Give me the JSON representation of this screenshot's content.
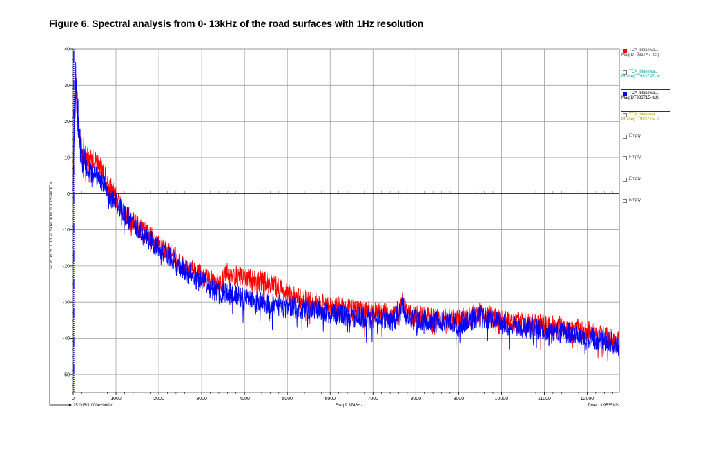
{
  "figure_title": "Figure 6. Spectral analysis from 0- 13kHz of the road surfaces with 1Hz resolution",
  "colors": {
    "series_red": "#ff0000",
    "series_blue": "#0000ff",
    "grid": "#a0a0a0",
    "zero_line": "#000000"
  },
  "legend": [
    {
      "line1": "TCA_blakewa...",
      "line2": "Mag(DT9837A7- tct)",
      "color": "#ff0000",
      "text_color": "#444444",
      "filled": true,
      "selected": false
    },
    {
      "line1": "TCA_blakewa...",
      "line2": "Phase(DT9837A7- tc",
      "color": "#00b0b0",
      "text_color": "#00a0a0",
      "filled": false,
      "selected": false
    },
    {
      "line1": "TCA_blakewa...",
      "line2": "Mag(DT983715- tct)",
      "color": "#0000ff",
      "text_color": "#000000",
      "filled": true,
      "selected": true
    },
    {
      "line1": "TCA_blakewa...",
      "line2": "Phase(DT983715- tc",
      "color": "#b0b000",
      "text_color": "#a0a000",
      "filled": false,
      "selected": false
    },
    {
      "line1": "Empty",
      "line2": "",
      "color": "#888888",
      "text_color": "#444444",
      "filled": false,
      "selected": false
    },
    {
      "line1": "Empty",
      "line2": "",
      "color": "#888888",
      "text_color": "#444444",
      "filled": false,
      "selected": false
    },
    {
      "line1": "Empty",
      "line2": "",
      "color": "#888888",
      "text_color": "#444444",
      "filled": false,
      "selected": false
    },
    {
      "line1": "Empty",
      "line2": "",
      "color": "#888888",
      "text_color": "#444444",
      "filled": false,
      "selected": false
    }
  ],
  "y_axis_vertical_label": "Mag(DT983715- tct)",
  "bottom_left_note": "25.0dB/1.000e+000V",
  "bottom_center_note": "Freq 9.3746Hz",
  "bottom_right_note": "Time 13.953592s",
  "chart_data": {
    "type": "line",
    "xlabel": "",
    "ylabel": "Mag(DT983715- tct)",
    "xlim": [
      0,
      12750
    ],
    "ylim": [
      -55,
      40
    ],
    "x_ticks": [
      0,
      1000,
      2000,
      3000,
      4000,
      5000,
      6000,
      7000,
      8000,
      9000,
      10000,
      11000,
      12000
    ],
    "y_ticks": [
      40,
      30,
      20,
      10,
      0,
      -10,
      -20,
      -30,
      -40,
      -50
    ],
    "grid": true,
    "legend_position": "right",
    "series": [
      {
        "name": "Mag(DT9837A7- tct)",
        "color": "#ff0000",
        "x": [
          0,
          30,
          60,
          100,
          150,
          200,
          300,
          400,
          500,
          600,
          700,
          800,
          900,
          1000,
          1200,
          1400,
          1600,
          1800,
          2000,
          2200,
          2400,
          2600,
          2800,
          3000,
          3200,
          3400,
          3600,
          3800,
          4000,
          4200,
          4400,
          4600,
          4800,
          5000,
          5500,
          6000,
          6500,
          7000,
          7500,
          7700,
          7800,
          8000,
          8500,
          9000,
          9500,
          10000,
          10500,
          11000,
          11500,
          12000,
          12500,
          12750
        ],
        "y": [
          5,
          20,
          30,
          22,
          16,
          12,
          10,
          9.5,
          9.5,
          8,
          6,
          3,
          1,
          -1,
          -5,
          -8,
          -10,
          -12,
          -14,
          -16,
          -18,
          -20,
          -21,
          -23,
          -24,
          -25.5,
          -22,
          -23,
          -23,
          -24,
          -24,
          -25,
          -26,
          -28,
          -30,
          -31,
          -32,
          -33,
          -33.5,
          -30,
          -33,
          -34,
          -34.5,
          -35,
          -33,
          -35,
          -36,
          -36.5,
          -37,
          -38,
          -40,
          -41
        ]
      },
      {
        "name": "Mag(DT983715- tct)",
        "color": "#0000ff",
        "x": [
          0,
          30,
          60,
          100,
          150,
          200,
          300,
          400,
          500,
          600,
          700,
          800,
          900,
          1000,
          1200,
          1400,
          1600,
          1800,
          2000,
          2200,
          2400,
          2600,
          2800,
          3000,
          3200,
          3400,
          3600,
          3800,
          4000,
          4200,
          4400,
          4600,
          4800,
          5000,
          5500,
          6000,
          6500,
          7000,
          7500,
          7700,
          7800,
          8000,
          8500,
          9000,
          9500,
          10000,
          10500,
          11000,
          11500,
          12000,
          12500,
          12750
        ],
        "y": [
          5,
          24,
          33,
          24,
          15,
          10,
          8,
          6,
          5,
          4,
          3,
          1,
          -1,
          -2,
          -5.5,
          -8.5,
          -11,
          -13,
          -15,
          -17,
          -19,
          -21,
          -23,
          -24.5,
          -26,
          -27,
          -27.5,
          -28,
          -29,
          -29.5,
          -30,
          -30.5,
          -31,
          -31.5,
          -32,
          -33,
          -34,
          -34.5,
          -35,
          -31,
          -34,
          -35,
          -35.5,
          -36,
          -34,
          -36,
          -37,
          -37.5,
          -38.5,
          -39.5,
          -41,
          -42
        ]
      }
    ]
  }
}
